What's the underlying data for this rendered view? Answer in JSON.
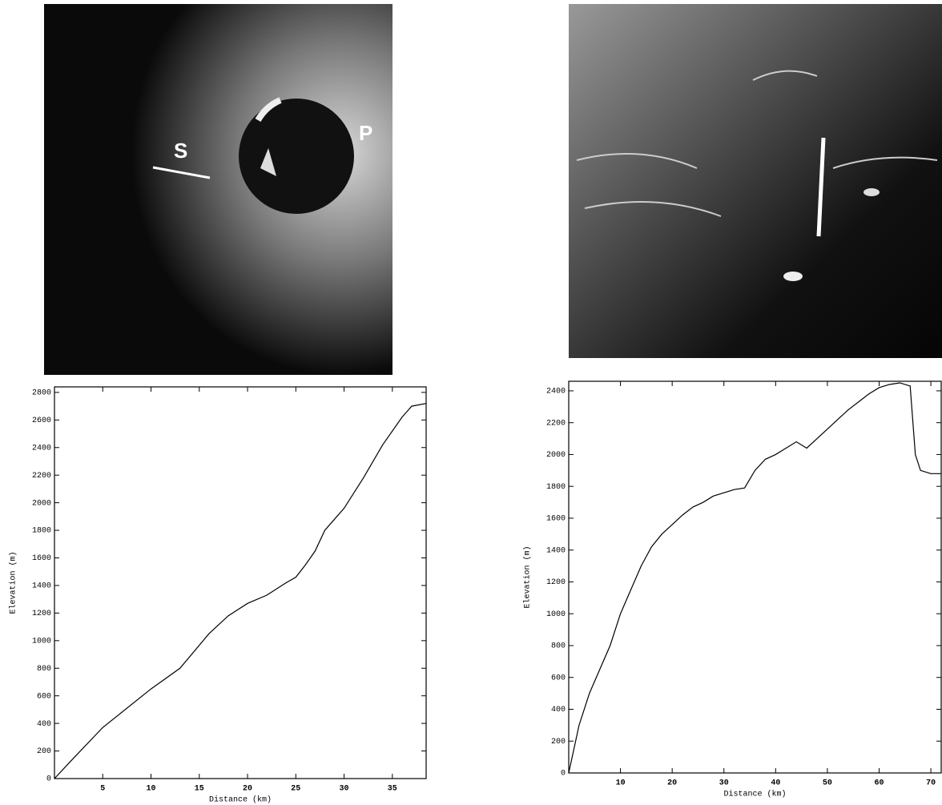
{
  "image_labels": [
    "S",
    "P"
  ],
  "chart_data": [
    {
      "type": "line",
      "x_label": "Distance (km)",
      "y_label": "Elevation (m)",
      "xlim": [
        0,
        38.5
      ],
      "ylim": [
        0,
        2840
      ],
      "xticks": [
        5,
        10,
        15,
        20,
        25,
        30,
        35
      ],
      "yticks": [
        0,
        200,
        400,
        600,
        800,
        1000,
        1200,
        1400,
        1600,
        1800,
        2000,
        2200,
        2400,
        2600,
        2800
      ],
      "series": [
        {
          "color": "#000000",
          "x": [
            0,
            2,
            5,
            10,
            13,
            16,
            18,
            20,
            22,
            24,
            25,
            26,
            27,
            28,
            29,
            30,
            32,
            34,
            36,
            37,
            38.5
          ],
          "values": [
            0,
            150,
            370,
            650,
            800,
            1050,
            1180,
            1270,
            1330,
            1420,
            1460,
            1550,
            1650,
            1800,
            1880,
            1960,
            2180,
            2420,
            2620,
            2700,
            2720
          ]
        }
      ]
    },
    {
      "type": "line",
      "x_label": "Distance (km)",
      "y_label": "Elevation (m)",
      "xlim": [
        0,
        72
      ],
      "ylim": [
        0,
        2460
      ],
      "xticks": [
        10,
        20,
        30,
        40,
        50,
        60,
        70
      ],
      "yticks": [
        0,
        200,
        400,
        600,
        800,
        1000,
        1200,
        1400,
        1600,
        1800,
        2000,
        2200,
        2400
      ],
      "series": [
        {
          "color": "#000000",
          "x": [
            0,
            2,
            4,
            6,
            8,
            10,
            12,
            14,
            16,
            18,
            20,
            22,
            24,
            26,
            28,
            30,
            32,
            34,
            36,
            38,
            40,
            42,
            44,
            46,
            48,
            50,
            52,
            54,
            56,
            58,
            60,
            62,
            64,
            66,
            67,
            68,
            70,
            72
          ],
          "values": [
            0,
            300,
            500,
            650,
            800,
            1000,
            1150,
            1300,
            1420,
            1500,
            1560,
            1620,
            1670,
            1700,
            1740,
            1760,
            1780,
            1790,
            1900,
            1970,
            2000,
            2040,
            2080,
            2040,
            2100,
            2160,
            2220,
            2280,
            2330,
            2380,
            2420,
            2440,
            2450,
            2430,
            2000,
            1900,
            1880,
            1880
          ]
        }
      ]
    }
  ]
}
